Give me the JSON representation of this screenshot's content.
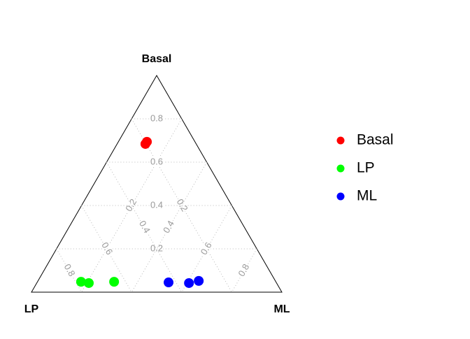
{
  "chart_data": {
    "type": "ternary",
    "axes": [
      "Basal",
      "LP",
      "ML"
    ],
    "ticks": [
      0.2,
      0.4,
      0.6,
      0.8
    ],
    "grid": true,
    "legend": "right",
    "series": [
      {
        "name": "Basal",
        "color": "#ff0000",
        "basal": [
          0.684,
          0.694
        ],
        "lp": [
          0.203,
          0.192
        ],
        "ml": [
          0.113,
          0.114
        ]
      },
      {
        "name": "LP",
        "color": "#00ff00",
        "basal": [
          0.048,
          0.042,
          0.048
        ],
        "lp": [
          0.778,
          0.75,
          0.646
        ],
        "ml": [
          0.174,
          0.208,
          0.306
        ]
      },
      {
        "name": "ML",
        "color": "#0000ff",
        "basal": [
          0.045,
          0.042,
          0.052
        ],
        "lp": [
          0.43,
          0.35,
          0.306
        ],
        "ml": [
          0.525,
          0.608,
          0.642
        ]
      }
    ]
  }
}
